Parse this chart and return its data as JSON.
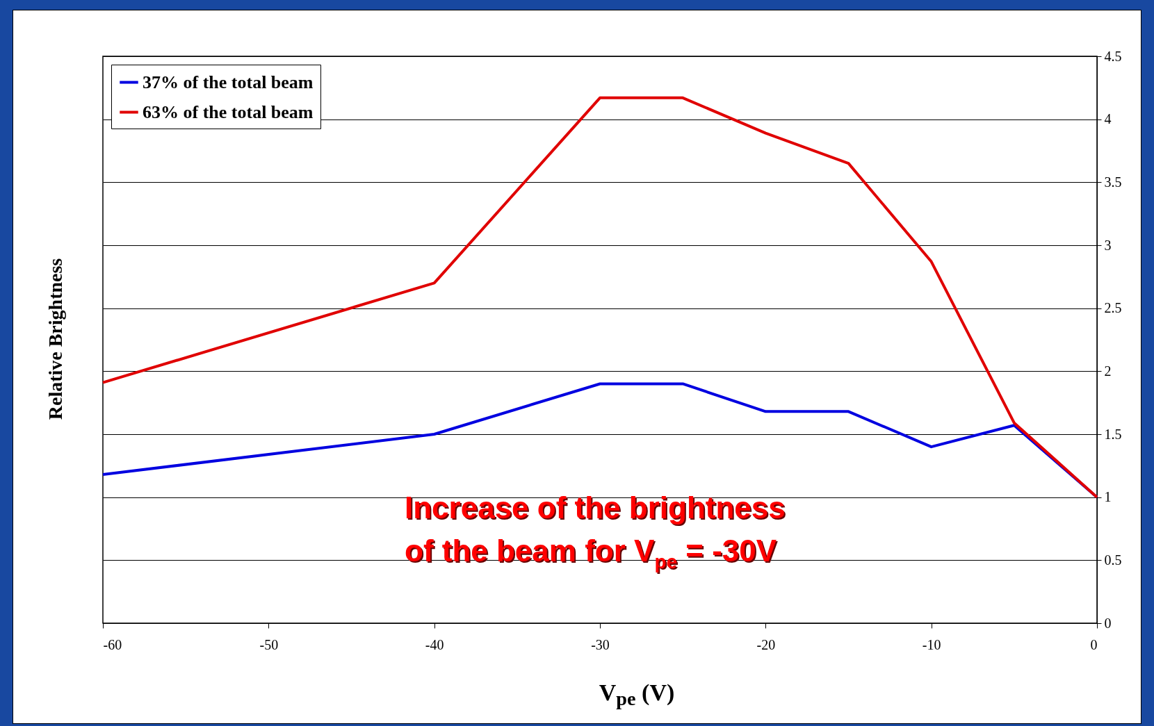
{
  "chart_data": {
    "type": "line",
    "xlabel": "V$_{pe}$ (V)",
    "ylabel": "Relative Brightness",
    "x": [
      -60,
      -40,
      -30,
      -25,
      -20,
      -15,
      -10,
      -5,
      0
    ],
    "series": [
      {
        "name": "37% of the total beam",
        "color": "#0000e0",
        "values": [
          1.18,
          1.5,
          1.9,
          1.9,
          1.68,
          1.68,
          1.4,
          1.57,
          1.0
        ]
      },
      {
        "name": "63% of the total beam",
        "color": "#e00000",
        "values": [
          1.91,
          2.7,
          4.17,
          4.17,
          3.89,
          3.65,
          2.87,
          1.59,
          1.0
        ]
      }
    ],
    "xlim": [
      -60,
      0
    ],
    "xticks": [
      -60,
      -50,
      -40,
      -30,
      -20,
      -10,
      0
    ],
    "ylim": [
      0,
      4.5
    ],
    "yticks": [
      0,
      0.5,
      1,
      1.5,
      2,
      2.5,
      3,
      3.5,
      4,
      4.5
    ],
    "grid": "y",
    "legend": "top left",
    "marker": "none",
    "line_style": "solid",
    "annotations": [
      "Increase of the brightness of the beam for V$_{pe}$ = -30V"
    ]
  }
}
